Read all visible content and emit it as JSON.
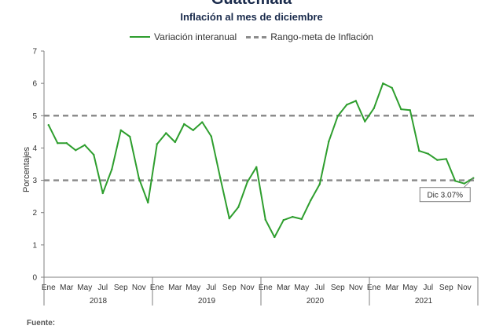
{
  "chart_data": {
    "type": "line",
    "title": "Guatemala",
    "subtitle": "Inflación al mes de diciembre",
    "ylabel": "Porcentajes",
    "ylim": [
      0,
      7
    ],
    "yticks": [
      0,
      1,
      2,
      3,
      4,
      5,
      6,
      7
    ],
    "x_tick_labels": [
      "Ene",
      "Mar",
      "May",
      "Jul",
      "Sep",
      "Nov",
      "Ene",
      "Mar",
      "May",
      "Jul",
      "Sep",
      "Nov",
      "Ene",
      "Mar",
      "May",
      "Jul",
      "Sep",
      "Nov",
      "Ene",
      "Mar",
      "May",
      "Jul",
      "Sep",
      "Nov"
    ],
    "years": [
      "2018",
      "2019",
      "2020",
      "2021"
    ],
    "legend_position": "top",
    "series": [
      {
        "name": "Variación interanual",
        "color": "#2e9e2e",
        "values": [
          4.71,
          4.15,
          4.15,
          3.93,
          4.09,
          3.79,
          2.6,
          3.34,
          4.55,
          4.35,
          3.06,
          2.31,
          4.12,
          4.46,
          4.18,
          4.74,
          4.55,
          4.8,
          4.36,
          3.07,
          1.82,
          2.17,
          2.95,
          3.41,
          1.78,
          1.24,
          1.77,
          1.87,
          1.8,
          2.38,
          2.88,
          4.2,
          4.99,
          5.34,
          5.46,
          4.82,
          5.23,
          6.0,
          5.86,
          5.2,
          5.17,
          3.91,
          3.82,
          3.63,
          3.66,
          2.98,
          2.9,
          3.07
        ]
      },
      {
        "name": "Rango-meta de Inflación",
        "color": "#8c8c8c",
        "style": "dashed",
        "bounds": [
          3,
          5
        ]
      }
    ],
    "annotation": "Dic 3.07%"
  },
  "footer": {
    "source_label": "Fuente:"
  }
}
